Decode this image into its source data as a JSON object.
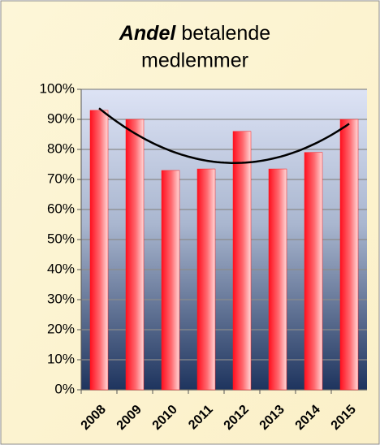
{
  "chart_data": {
    "type": "bar",
    "title": {
      "emphasis": "Andel",
      "lines": [
        "betalende",
        "medlemmer"
      ]
    },
    "categories": [
      "2008",
      "2009",
      "2010",
      "2011",
      "2012",
      "2013",
      "2014",
      "2015"
    ],
    "values": [
      93,
      90,
      73,
      73.5,
      86,
      73.5,
      79,
      90
    ],
    "color": "#ff1a1a",
    "trendline": {
      "type": "polynomial",
      "order": 2,
      "color": "#000000"
    },
    "ylim": [
      0,
      100
    ],
    "yticks": [
      {
        "value": 0,
        "label": "0%"
      },
      {
        "value": 10,
        "label": "10%"
      },
      {
        "value": 20,
        "label": "20%"
      },
      {
        "value": 30,
        "label": "30%"
      },
      {
        "value": 40,
        "label": "40%"
      },
      {
        "value": 50,
        "label": "50%"
      },
      {
        "value": 60,
        "label": "60%"
      },
      {
        "value": 70,
        "label": "70%"
      },
      {
        "value": 80,
        "label": "80%"
      },
      {
        "value": 90,
        "label": "90%"
      },
      {
        "value": 100,
        "label": "100%"
      }
    ],
    "grid": true
  }
}
